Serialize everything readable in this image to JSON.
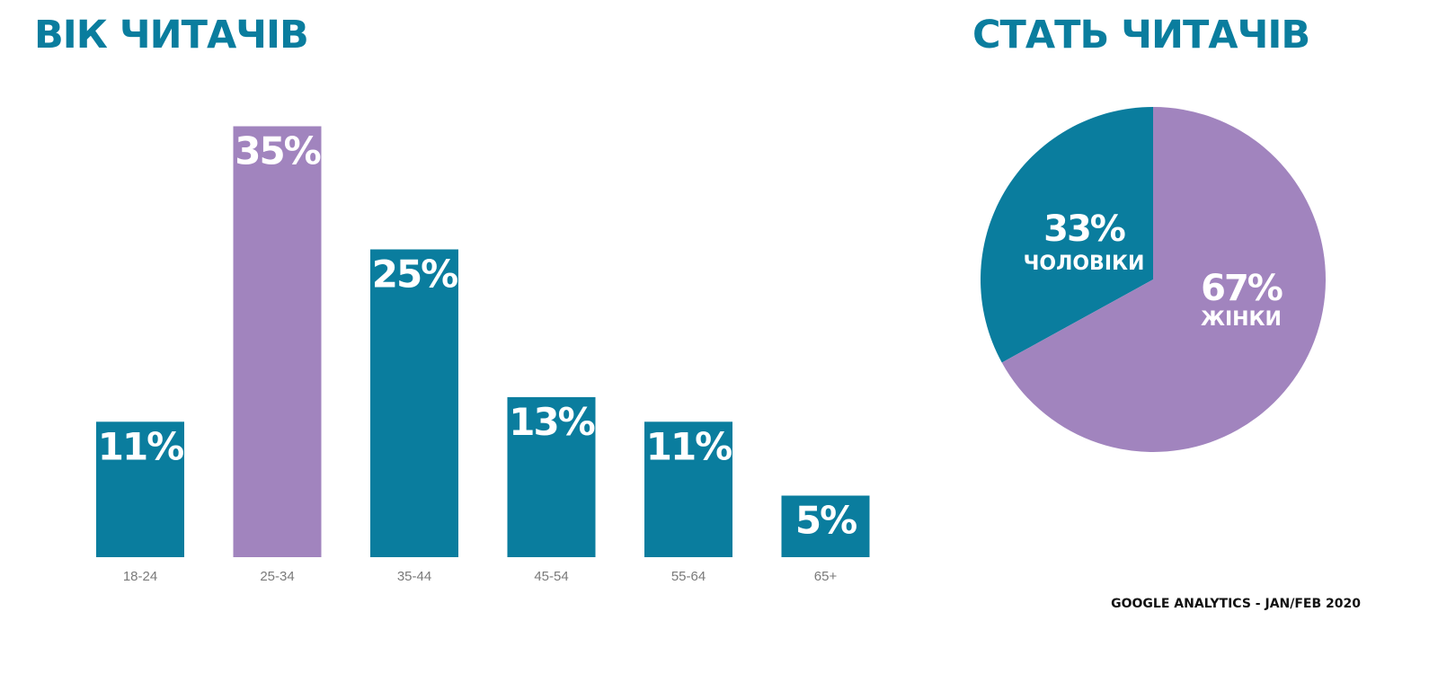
{
  "age_title": "ВІК ЧИТАЧІВ",
  "gender_title": "СТАТЬ ЧИТАЧІВ",
  "source": "GOOGLE ANALYTICS - JAN/FEB 2020",
  "colors": {
    "teal": "#0a7d9e",
    "purple": "#a184be",
    "title": "#0a7d9e"
  },
  "chart_data": [
    {
      "type": "bar",
      "title": "ВІК ЧИТАЧІВ",
      "categories": [
        "18-24",
        "25-34",
        "35-44",
        "45-54",
        "55-64",
        "65+"
      ],
      "values": [
        11,
        35,
        25,
        13,
        11,
        5
      ],
      "data_labels": [
        "11%",
        "35%",
        "25%",
        "13%",
        "11%",
        "5%"
      ],
      "unit": "%",
      "highlight_index": 1,
      "grid": false
    },
    {
      "type": "pie",
      "title": "СТАТЬ ЧИТАЧІВ",
      "slices": [
        {
          "label": "ЧОЛОВІКИ",
          "value": 33,
          "pct_label": "33%",
          "color": "#0a7d9e"
        },
        {
          "label": "ЖІНКИ",
          "value": 67,
          "pct_label": "67%",
          "color": "#a184be"
        }
      ]
    }
  ]
}
